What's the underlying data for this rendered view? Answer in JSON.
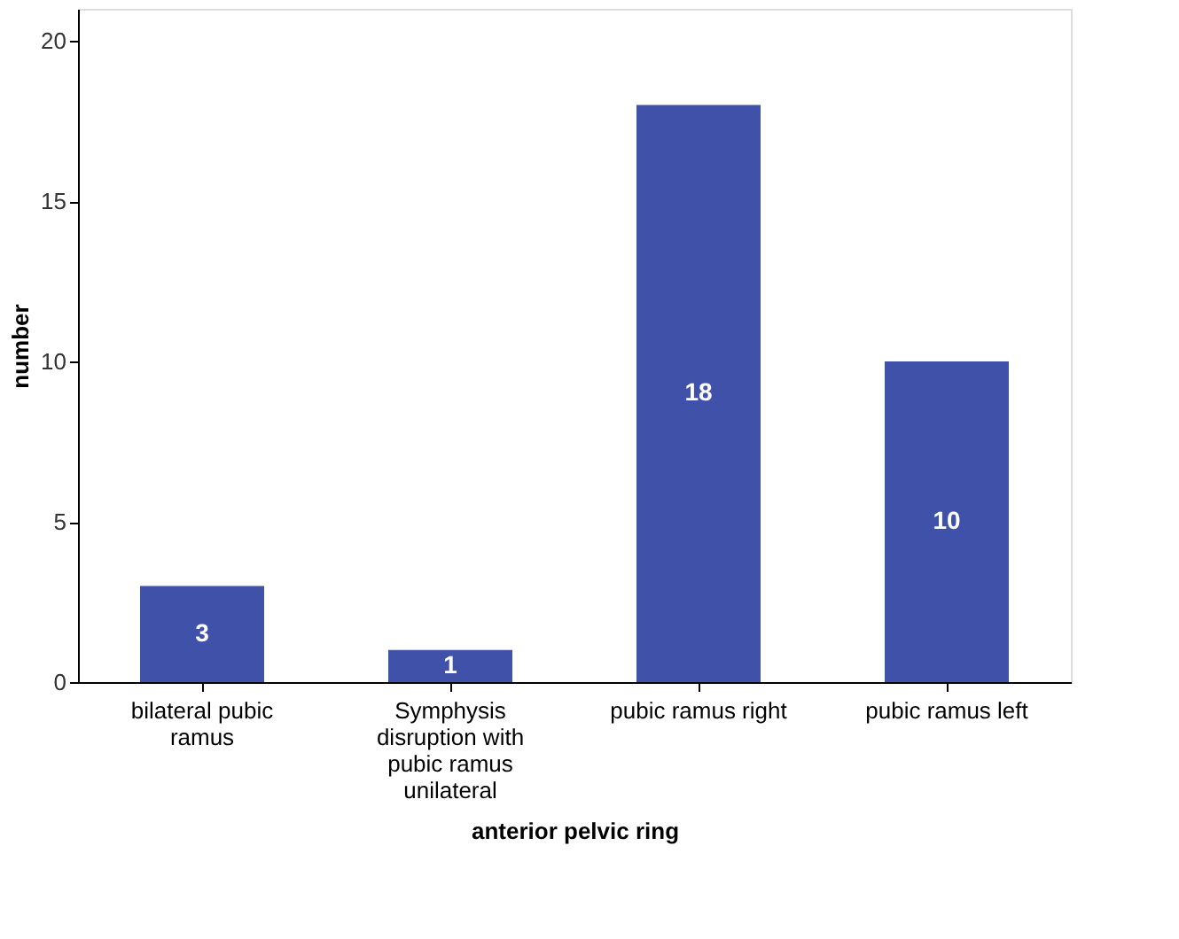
{
  "chart_data": {
    "type": "bar",
    "xlabel": "anterior pelvic ring",
    "ylabel": "number",
    "categories": [
      "bilateral pubic ramus",
      "Symphysis disruption with pubic ramus unilateral",
      "pubic ramus right",
      "pubic ramus left"
    ],
    "values": [
      3,
      1,
      18,
      10
    ],
    "color": "#3f51a8",
    "ylim": [
      0,
      21
    ],
    "yticks": [
      0,
      5,
      10,
      15,
      20
    ],
    "grid": false,
    "data_labels": true
  }
}
